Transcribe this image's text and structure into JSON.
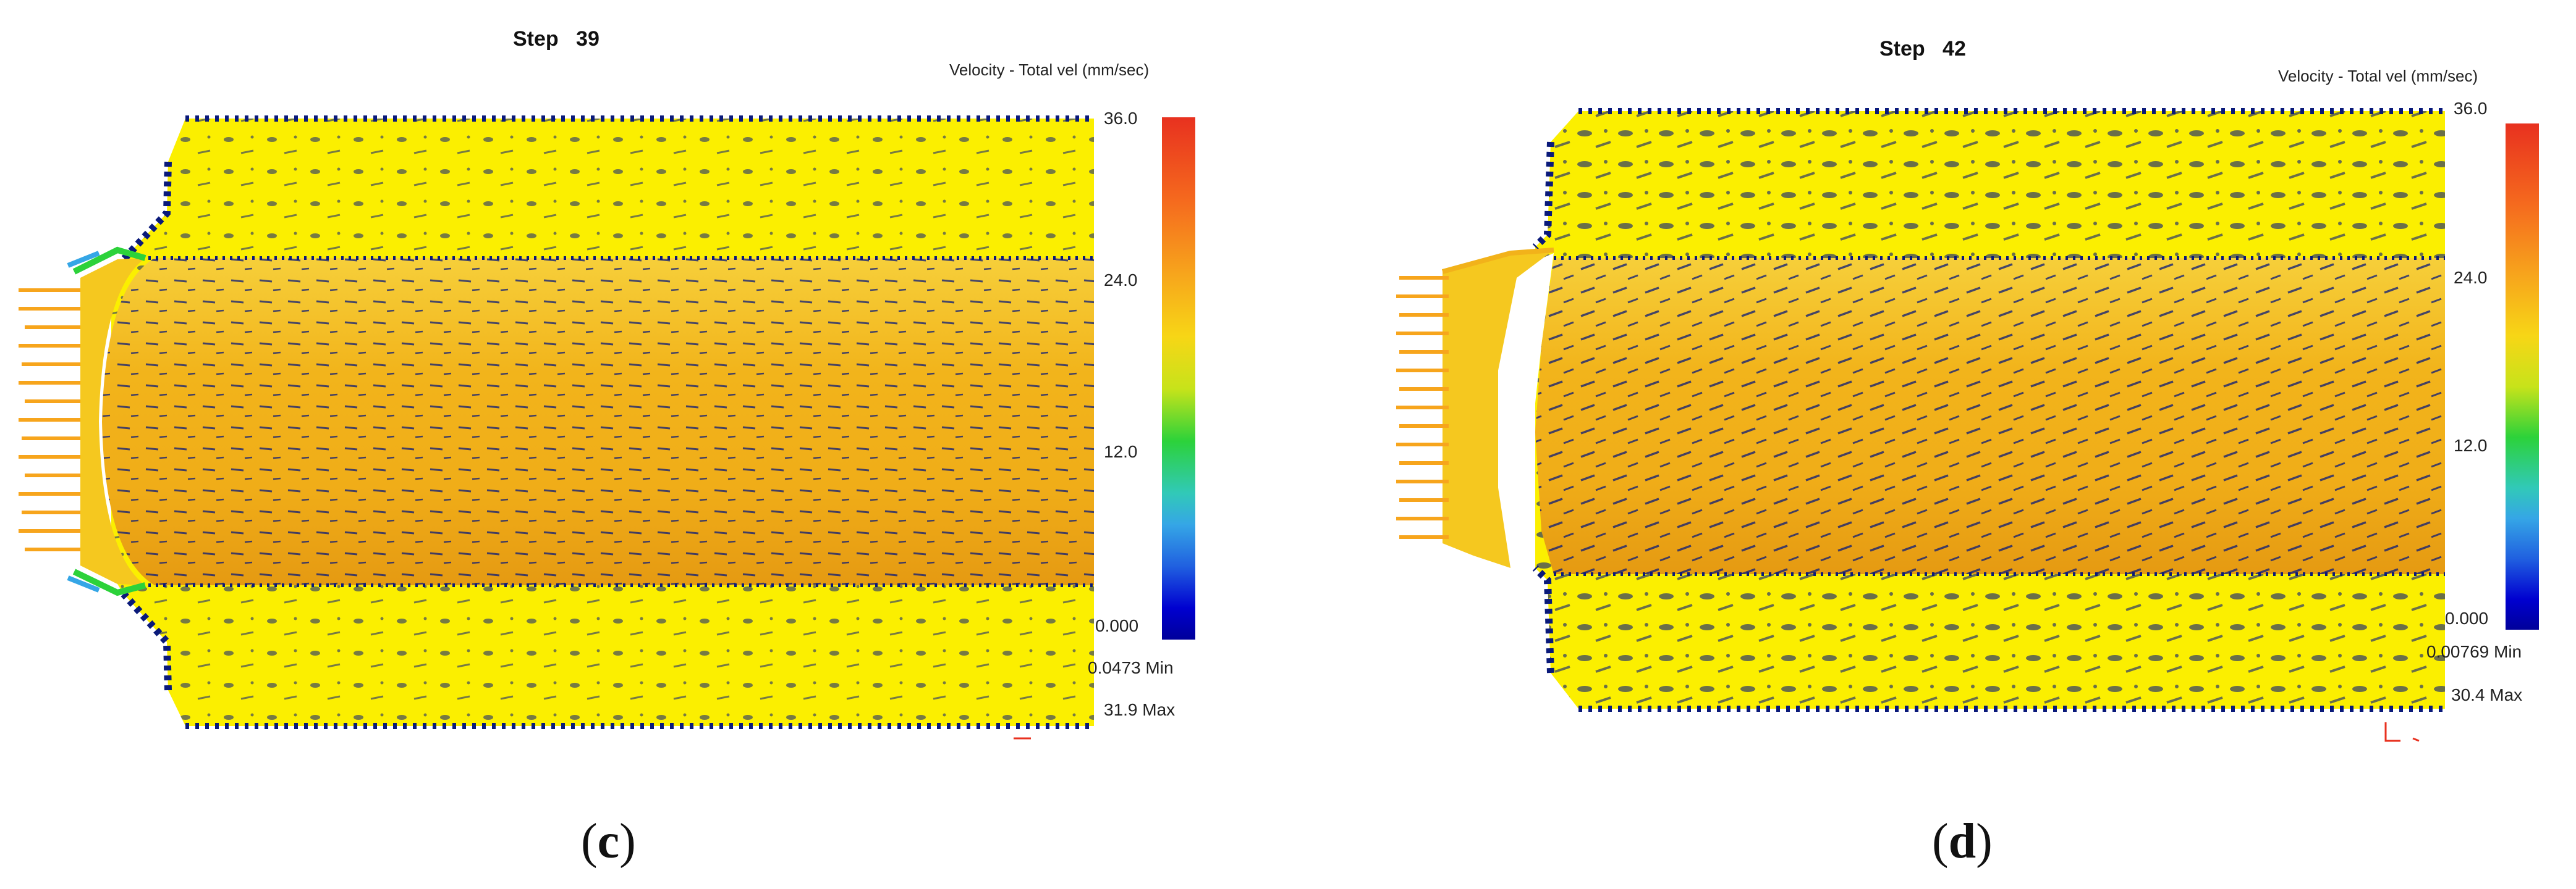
{
  "panels": {
    "c": {
      "step_label": "Step",
      "step_number": "39",
      "legend_title": "Velocity - Total vel (mm/sec)",
      "ticks": {
        "t36": "36.0",
        "t24": "24.0",
        "t12": "12.0",
        "t0": "0.000"
      },
      "min_value": "0.0473",
      "min_label": "Min",
      "max_value": "31.9",
      "max_label": "Max",
      "caption_letter": "c"
    },
    "d": {
      "step_label": "Step",
      "step_number": "42",
      "legend_title": "Velocity - Total vel (mm/sec)",
      "ticks": {
        "t36": "36.0",
        "t24": "24.0",
        "t12": "12.0",
        "t0": "0.000"
      },
      "min_value": "0.00769",
      "min_label": "Min",
      "max_value": "30.4",
      "max_label": "Max",
      "caption_letter": "d"
    }
  },
  "colors": {
    "field_yellow": "#fbef00",
    "core_orange": "#f2b21a",
    "vector_blue": "#0a1a7a",
    "inlet_orange": "#f7a51c"
  }
}
